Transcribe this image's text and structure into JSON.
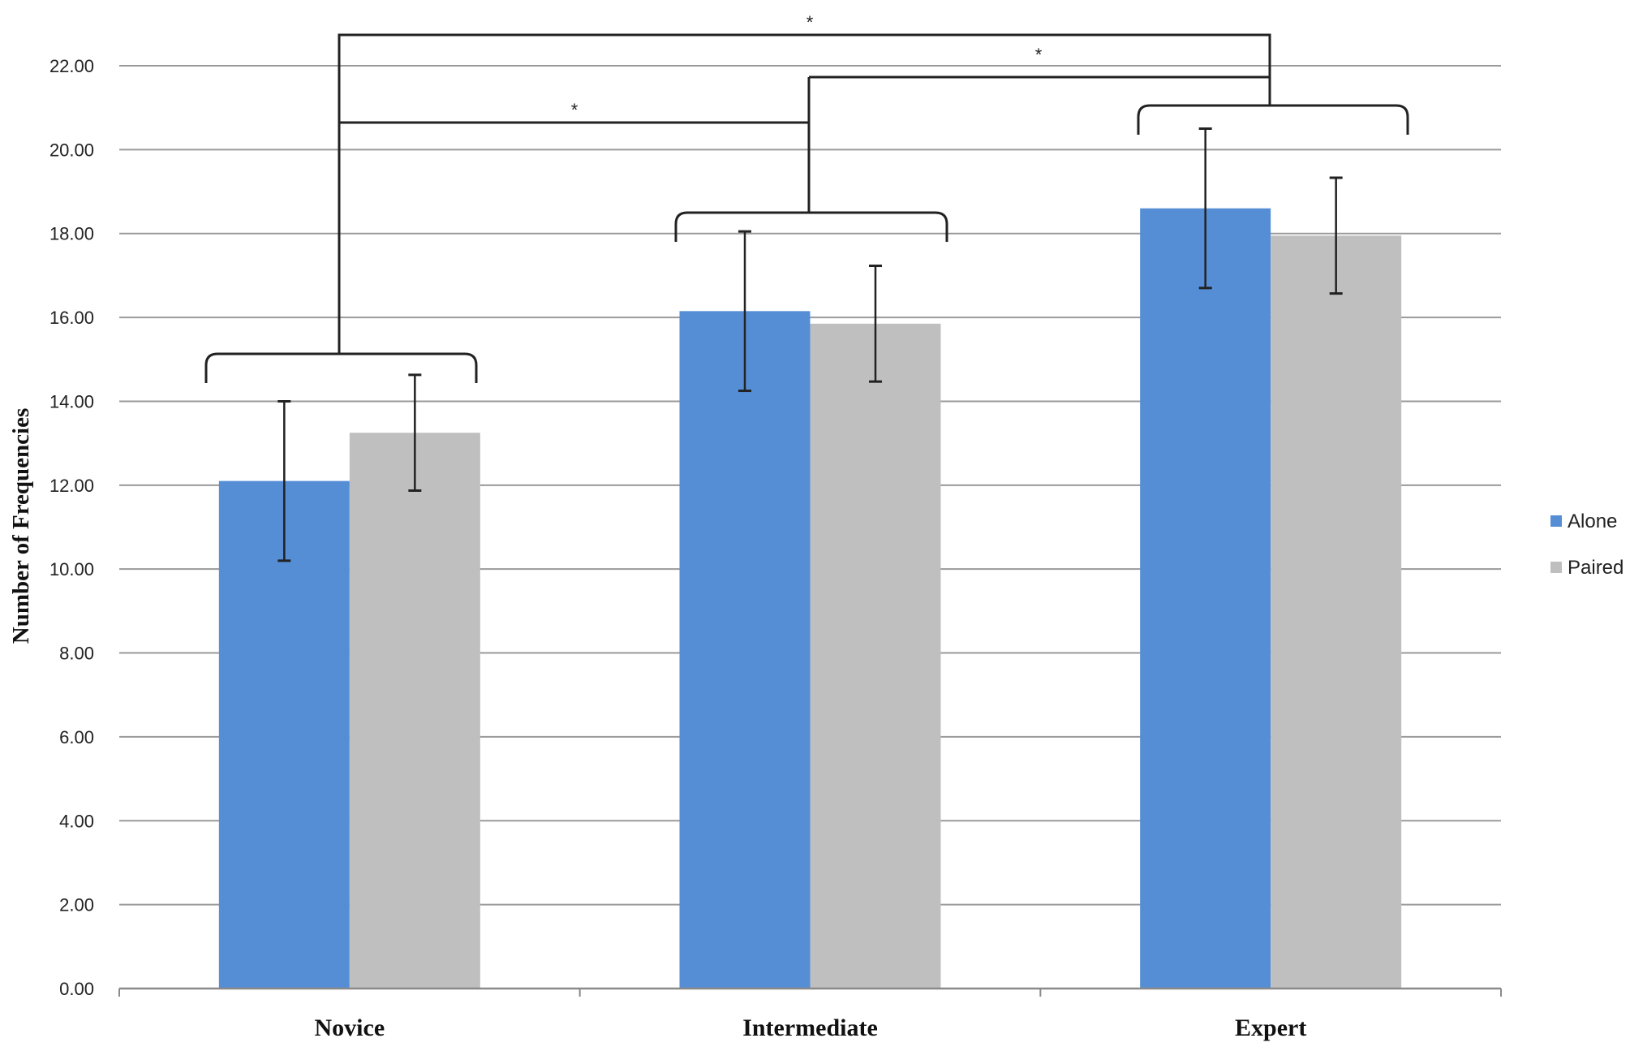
{
  "chart_data": {
    "type": "bar",
    "title": "",
    "xlabel": "",
    "ylabel": "Number of Frequencies",
    "categories": [
      "Novice",
      "Intermediate",
      "Expert"
    ],
    "series": [
      {
        "name": "Alone",
        "color": "#558ed5",
        "values": [
          12.1,
          16.15,
          18.6
        ],
        "error": [
          1.9,
          1.9,
          1.9
        ]
      },
      {
        "name": "Paired",
        "color": "#bfbfbf",
        "values": [
          13.25,
          15.85,
          17.95
        ],
        "error": [
          1.38,
          1.38,
          1.38
        ]
      }
    ],
    "ylim": [
      0,
      22
    ],
    "yticks": [
      "0.00",
      "2.00",
      "4.00",
      "6.00",
      "8.00",
      "10.00",
      "12.00",
      "14.00",
      "16.00",
      "18.00",
      "20.00",
      "22.00"
    ],
    "grid": true,
    "legend_position": "right",
    "significance_brackets": [
      {
        "from": "Novice",
        "to": "Intermediate",
        "label": "*"
      },
      {
        "from": "Intermediate",
        "to": "Expert",
        "label": "*"
      },
      {
        "from": "Novice",
        "to": "Expert",
        "label": "*"
      }
    ]
  }
}
